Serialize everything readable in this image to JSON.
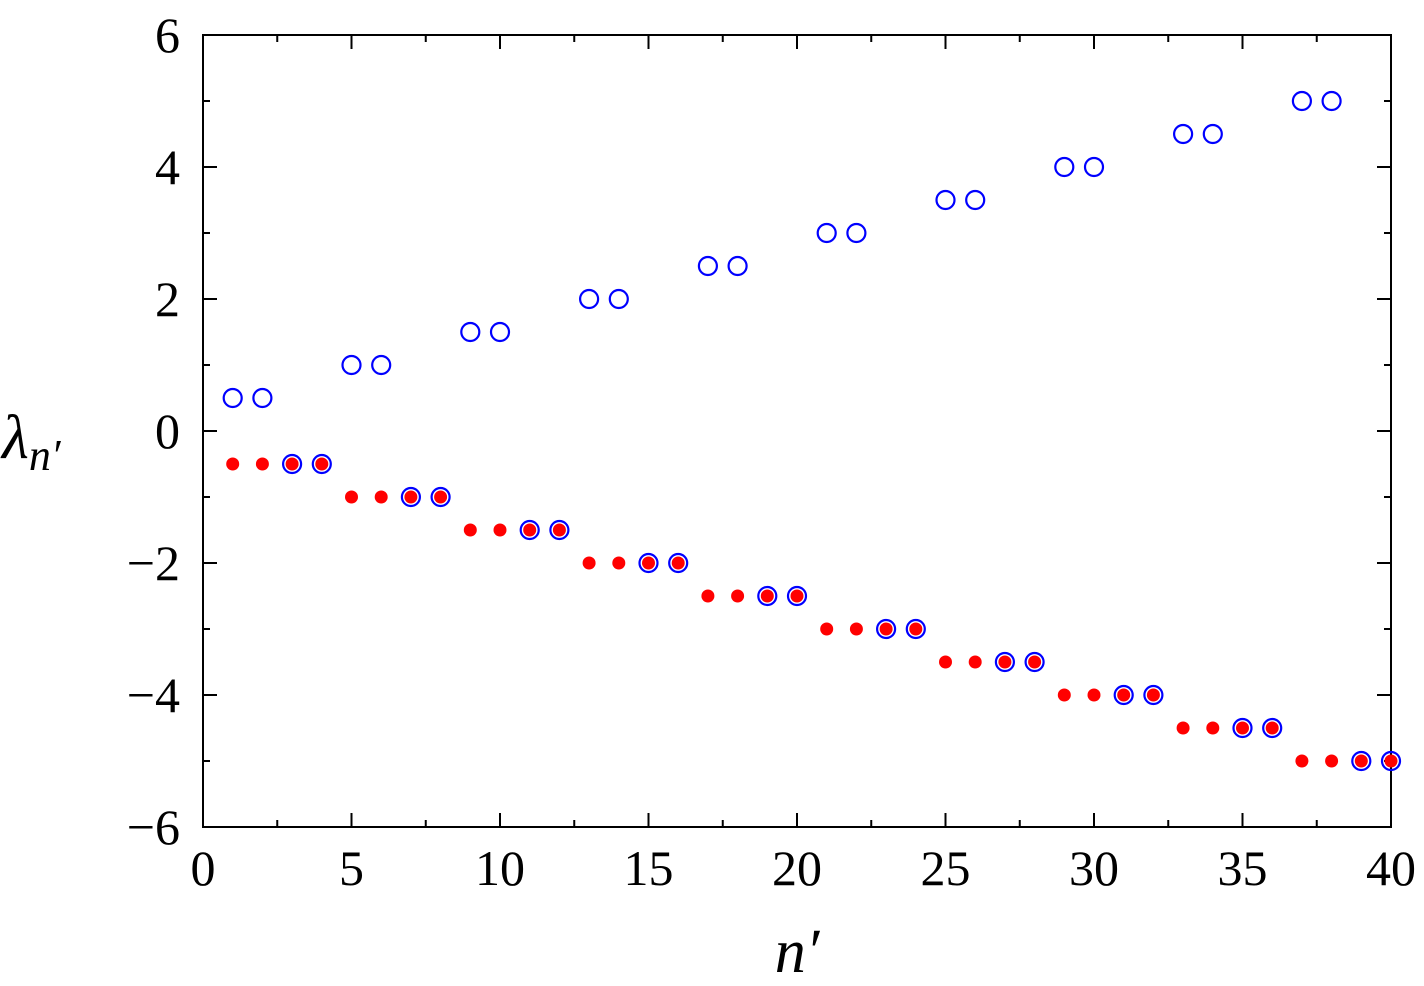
{
  "chart_data": {
    "type": "scatter",
    "xlabel": "n′",
    "ylabel": {
      "main": "λ",
      "sub": "n′"
    },
    "x": [
      1,
      2,
      3,
      4,
      5,
      6,
      7,
      8,
      9,
      10,
      11,
      12,
      13,
      14,
      15,
      16,
      17,
      18,
      19,
      20,
      21,
      22,
      23,
      24,
      25,
      26,
      27,
      28,
      29,
      30,
      31,
      32,
      33,
      34,
      35,
      36,
      37,
      38,
      39,
      40
    ],
    "series": [
      {
        "color": "#0000ff",
        "marker": "open",
        "values": [
          0.5,
          0.5,
          -0.5,
          -0.5,
          1,
          1,
          -1,
          -1,
          1.5,
          1.5,
          -1.5,
          -1.5,
          2,
          2,
          -2,
          -2,
          2.5,
          2.5,
          -2.5,
          -2.5,
          3,
          3,
          -3,
          -3,
          3.5,
          3.5,
          -3.5,
          -3.5,
          4,
          4,
          -4,
          -4,
          4.5,
          4.5,
          -4.5,
          -4.5,
          5,
          5,
          -5,
          -5
        ]
      },
      {
        "color": "#ff0000",
        "marker": "filled",
        "values": [
          -0.5,
          -0.5,
          -0.5,
          -0.5,
          -1,
          -1,
          -1,
          -1,
          -1.5,
          -1.5,
          -1.5,
          -1.5,
          -2,
          -2,
          -2,
          -2,
          -2.5,
          -2.5,
          -2.5,
          -2.5,
          -3,
          -3,
          -3,
          -3,
          -3.5,
          -3.5,
          -3.5,
          -3.5,
          -4,
          -4,
          -4,
          -4,
          -4.5,
          -4.5,
          -4.5,
          -4.5,
          -5,
          -5,
          -5,
          -5
        ]
      }
    ],
    "xlim": [
      0,
      40
    ],
    "xticks": [
      0,
      5,
      10,
      15,
      20,
      25,
      30,
      35,
      40
    ],
    "xminorticks": [
      2.5,
      7.5,
      12.5,
      17.5,
      22.5,
      27.5,
      32.5,
      37.5
    ],
    "ylim": [
      -6,
      6
    ],
    "yticks": [
      {
        "value": -6,
        "label": "−6"
      },
      {
        "value": -4,
        "label": "−4"
      },
      {
        "value": -2,
        "label": "−2"
      },
      0,
      2,
      4,
      6
    ],
    "yminorticks": [
      -5,
      -3,
      -1,
      1,
      3,
      5
    ],
    "grid": false
  }
}
